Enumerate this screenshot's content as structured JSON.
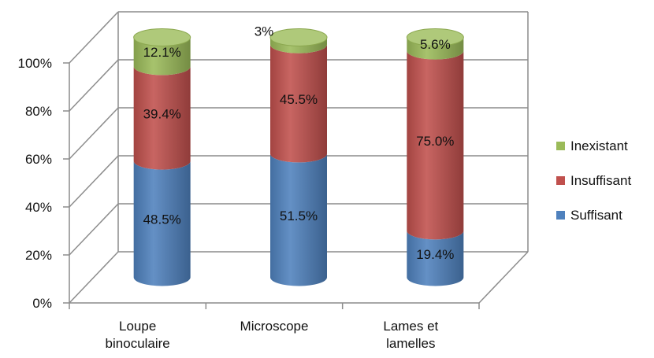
{
  "chart_data": {
    "type": "bar",
    "stacked": true,
    "style": "3d-cylinder",
    "categories": [
      [
        "Loupe",
        "binoculaire"
      ],
      [
        "Microscope"
      ],
      [
        "Lames et",
        "lamelles"
      ]
    ],
    "series": [
      {
        "name": "Suffisant",
        "color": "#4F81BD",
        "values": [
          48.5,
          51.5,
          19.4
        ],
        "labels": [
          "48.5%",
          "51.5%",
          "19.4%"
        ]
      },
      {
        "name": "Insuffisant",
        "color": "#C0504D",
        "values": [
          39.4,
          45.5,
          75.0
        ],
        "labels": [
          "39.4%",
          "45.5%",
          "75.0%"
        ]
      },
      {
        "name": "Inexistant",
        "color": "#9BBB59",
        "values": [
          12.1,
          3.0,
          5.6
        ],
        "labels": [
          "12.1%",
          "3%",
          "5.6%"
        ]
      }
    ],
    "yticks": [
      "0%",
      "20%",
      "40%",
      "60%",
      "80%",
      "100%"
    ],
    "ylim": [
      0,
      100
    ],
    "grid": true,
    "legend_position": "right"
  }
}
